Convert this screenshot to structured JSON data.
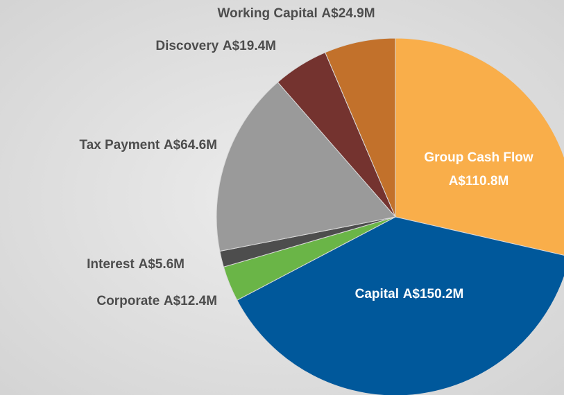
{
  "chart_data": {
    "type": "pie",
    "categories": [
      "Group Cash Flow",
      "Capital",
      "Corporate",
      "Interest",
      "Tax Payment",
      "Discovery",
      "Working Capital"
    ],
    "values": [
      110.8,
      150.2,
      12.4,
      5.6,
      64.6,
      19.4,
      24.9
    ],
    "value_labels": [
      "A$110.8M",
      "A$150.2M",
      "A$12.4M",
      "A$5.6M",
      "A$64.6M",
      "A$19.4M",
      "A$24.9M"
    ],
    "colors": [
      "#f9ae4a",
      "#00589b",
      "#6ab547",
      "#4d4d4d",
      "#9a9a9a",
      "#74332f",
      "#c2712b"
    ]
  }
}
